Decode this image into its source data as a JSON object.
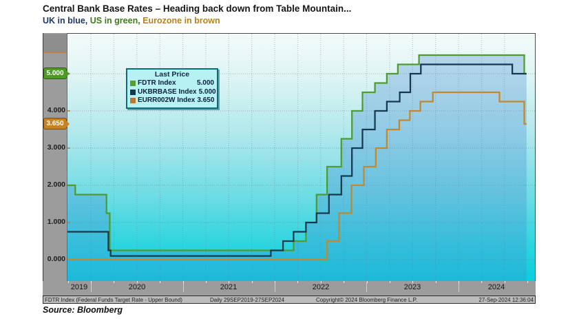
{
  "title": "Central Bank Base Rates – Heading back down from Table Mountain...",
  "subtitle": {
    "parts": [
      {
        "text": "UK in blue, ",
        "color": "#1f3864"
      },
      {
        "text": "US in green, ",
        "color": "#3c7a1c"
      },
      {
        "text": "Eurozone in brown",
        "color": "#b5831a"
      }
    ]
  },
  "legend": {
    "title": "Last Price",
    "rows": [
      {
        "label": "FDTR Index",
        "value": "5.000",
        "color": "#5a9e2a"
      },
      {
        "label": "UKBRBASE Index",
        "value": "5.000",
        "color": "#16384f"
      },
      {
        "label": "EURR002W Index",
        "value": "3.650",
        "color": "#c1772a"
      }
    ]
  },
  "y_axis": {
    "labels": [
      "4.000",
      "3.000",
      "2.000",
      "1.000",
      "0.000"
    ],
    "badges": [
      {
        "text": "5.000",
        "bg": "#4e9b23",
        "border": "#2c5a12"
      },
      {
        "text": "3.650",
        "bg": "#c8821f",
        "border": "#7a4c0e"
      }
    ]
  },
  "x_axis": {
    "years": [
      "2019",
      "2020",
      "2021",
      "2022",
      "2023",
      "2024"
    ]
  },
  "footer": {
    "left": "FDTR Index (Federal Funds Target Rate - Upper Bound)",
    "range": "Daily 29SEP2019-27SEP2024",
    "center": "Copyright© 2024 Bloomberg Finance L.P.",
    "right": "27-Sep-2024 12:36:04"
  },
  "source": "Source: Bloomberg",
  "chart_data": {
    "type": "line",
    "style": "step-after",
    "title": "Central Bank Base Rates",
    "x_range": [
      "29SEP2019",
      "27SEP2024"
    ],
    "x_end": 2024.74,
    "ylim": [
      -0.6,
      6.05
    ],
    "y_ticks": [
      0.0,
      1.0,
      2.0,
      3.0,
      4.0,
      5.0
    ],
    "grid": "dotted, horizontal every 1.000, vertical quarterly",
    "legend_position": "top-left",
    "background": {
      "top": "#f3fbfa",
      "bottom": "#08cfdb"
    },
    "area_fill": "rgba(70,140,210,0.32)",
    "series": [
      {
        "name": "FDTR Index",
        "last_price": 5.0,
        "color": "#4f9c2e",
        "points": [
          [
            2019.745,
            2.0
          ],
          [
            2019.83,
            1.75
          ],
          [
            2020.17,
            1.25
          ],
          [
            2020.205,
            0.25
          ],
          [
            2022.205,
            0.5
          ],
          [
            2022.34,
            1.0
          ],
          [
            2022.455,
            1.75
          ],
          [
            2022.57,
            2.5
          ],
          [
            2022.725,
            3.25
          ],
          [
            2022.84,
            4.0
          ],
          [
            2022.955,
            4.5
          ],
          [
            2023.09,
            4.75
          ],
          [
            2023.22,
            5.0
          ],
          [
            2023.34,
            5.25
          ],
          [
            2023.57,
            5.5
          ],
          [
            2024.715,
            5.0
          ]
        ]
      },
      {
        "name": "UKBRBASE Index",
        "last_price": 5.0,
        "color": "#16384f",
        "points": [
          [
            2019.745,
            0.75
          ],
          [
            2020.19,
            0.25
          ],
          [
            2020.215,
            0.1
          ],
          [
            2021.958,
            0.25
          ],
          [
            2022.09,
            0.5
          ],
          [
            2022.205,
            0.75
          ],
          [
            2022.34,
            1.0
          ],
          [
            2022.455,
            1.25
          ],
          [
            2022.59,
            1.75
          ],
          [
            2022.725,
            2.25
          ],
          [
            2022.84,
            3.0
          ],
          [
            2022.955,
            3.5
          ],
          [
            2023.09,
            4.0
          ],
          [
            2023.22,
            4.25
          ],
          [
            2023.36,
            4.5
          ],
          [
            2023.475,
            5.0
          ],
          [
            2023.59,
            5.25
          ],
          [
            2024.585,
            5.0
          ]
        ]
      },
      {
        "name": "EURR002W Index",
        "last_price": 3.65,
        "color": "#c1882e",
        "points": [
          [
            2019.745,
            0.0
          ],
          [
            2022.57,
            0.5
          ],
          [
            2022.7,
            1.25
          ],
          [
            2022.835,
            2.0
          ],
          [
            2022.97,
            2.5
          ],
          [
            2023.1,
            3.0
          ],
          [
            2023.22,
            3.5
          ],
          [
            2023.355,
            3.75
          ],
          [
            2023.47,
            4.0
          ],
          [
            2023.585,
            4.25
          ],
          [
            2023.72,
            4.5
          ],
          [
            2024.445,
            4.25
          ],
          [
            2024.715,
            3.65
          ]
        ]
      }
    ]
  }
}
